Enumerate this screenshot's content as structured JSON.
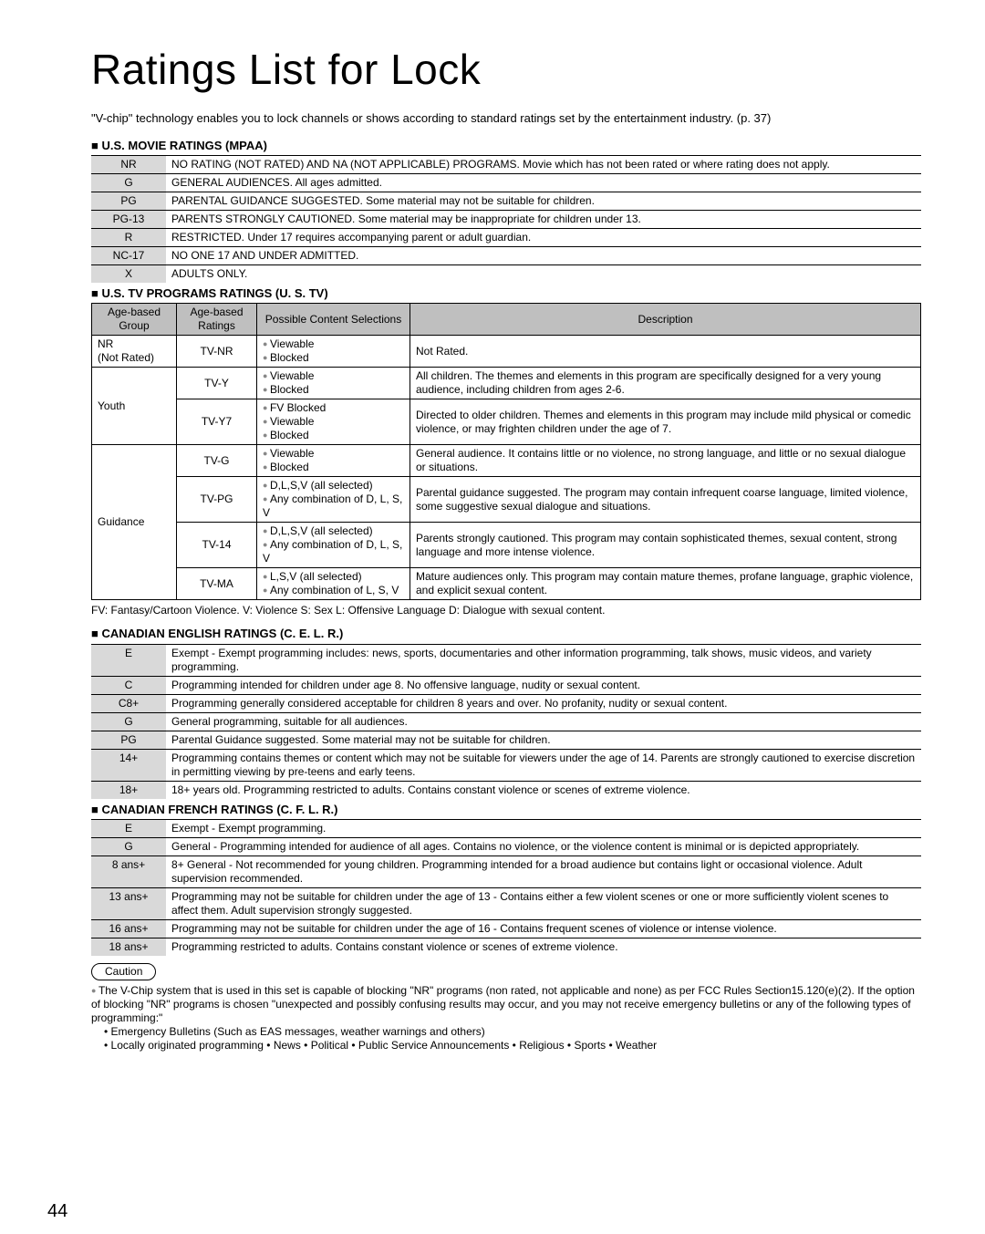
{
  "title": "Ratings List for Lock",
  "intro": "\"V-chip\" technology enables you to lock channels or shows according to standard ratings set by the entertainment industry. (p. 37)",
  "mpaa_head": "U.S. MOVIE RATINGS (MPAA)",
  "mpaa": [
    {
      "code": "NR",
      "desc": "NO RATING (NOT RATED) AND NA (NOT APPLICABLE) PROGRAMS. Movie which has not been rated or where rating does not apply."
    },
    {
      "code": "G",
      "desc": "GENERAL AUDIENCES. All ages admitted."
    },
    {
      "code": "PG",
      "desc": "PARENTAL GUIDANCE SUGGESTED. Some material may not be suitable for children."
    },
    {
      "code": "PG-13",
      "desc": "PARENTS STRONGLY CAUTIONED. Some material may be inappropriate for children under 13."
    },
    {
      "code": "R",
      "desc": "RESTRICTED. Under 17 requires accompanying parent or adult guardian."
    },
    {
      "code": "NC-17",
      "desc": "NO ONE 17 AND UNDER ADMITTED."
    },
    {
      "code": "X",
      "desc": "ADULTS ONLY."
    }
  ],
  "ustv_head": "U.S. TV PROGRAMS RATINGS (U. S. TV)",
  "ustv_cols": {
    "c1": "Age-based Group",
    "c2": "Age-based Ratings",
    "c3": "Possible Content Selections",
    "c4": "Description"
  },
  "ustv": [
    {
      "group": "NR (Not Rated)",
      "rows": [
        {
          "rating": "TV-NR",
          "poss": [
            "Viewable",
            "Blocked"
          ],
          "desc": "Not Rated."
        }
      ]
    },
    {
      "group": "Youth",
      "rows": [
        {
          "rating": "TV-Y",
          "poss": [
            "Viewable",
            "Blocked"
          ],
          "desc": "All children. The themes and elements in this program are specifically designed for a very young audience, including children from ages 2-6."
        },
        {
          "rating": "TV-Y7",
          "poss": [
            "FV Blocked",
            "Viewable",
            "Blocked"
          ],
          "desc": "Directed to older children. Themes and elements in this program may include mild physical or comedic violence, or may frighten children under the age of 7."
        }
      ]
    },
    {
      "group": "Guidance",
      "rows": [
        {
          "rating": "TV-G",
          "poss": [
            "Viewable",
            "Blocked"
          ],
          "desc": "General audience. It contains little or no violence, no strong language, and little or no sexual dialogue or situations."
        },
        {
          "rating": "TV-PG",
          "poss": [
            "D,L,S,V (all selected)",
            "Any combination of D, L, S, V"
          ],
          "desc": "Parental guidance suggested. The program may contain infrequent coarse language, limited violence, some suggestive sexual dialogue and situations."
        },
        {
          "rating": "TV-14",
          "poss": [
            "D,L,S,V (all selected)",
            "Any combination of D, L, S, V"
          ],
          "desc": "Parents strongly cautioned. This program may contain sophisticated themes, sexual content, strong language and more intense violence."
        },
        {
          "rating": "TV-MA",
          "poss": [
            "L,S,V (all selected)",
            "Any combination of L, S, V"
          ],
          "desc": "Mature audiences only. This program may contain mature themes, profane language, graphic violence, and explicit sexual content."
        }
      ]
    }
  ],
  "fv_note": "FV:  Fantasy/Cartoon Violence.  V:  Violence S:  Sex L:  Offensive Language D:  Dialogue with sexual content.",
  "cer_head": "CANADIAN ENGLISH RATINGS (C. E. L. R.)",
  "cer": [
    {
      "code": "E",
      "desc": "Exempt - Exempt programming includes:  news, sports, documentaries and other information programming, talk shows, music videos, and variety programming."
    },
    {
      "code": "C",
      "desc": "Programming intended for children under age 8. No offensive language, nudity or sexual content."
    },
    {
      "code": "C8+",
      "desc": "Programming generally considered acceptable for children 8 years and over. No profanity, nudity or sexual content."
    },
    {
      "code": "G",
      "desc": "General programming, suitable for all audiences."
    },
    {
      "code": "PG",
      "desc": "Parental Guidance suggested. Some material may not be suitable for children."
    },
    {
      "code": "14+",
      "desc": "Programming contains themes or content which may not be suitable for viewers under the age of 14. Parents are strongly cautioned to exercise discretion in permitting viewing by pre-teens and early teens."
    },
    {
      "code": "18+",
      "desc": "18+ years old. Programming restricted to adults. Contains constant violence or scenes of extreme violence."
    }
  ],
  "cfr_head": "CANADIAN FRENCH RATINGS (C. F. L. R.)",
  "cfr": [
    {
      "code": "E",
      "desc": "Exempt - Exempt programming."
    },
    {
      "code": "G",
      "desc": "General - Programming intended for audience of all ages. Contains no violence, or the violence content is minimal or is depicted appropriately."
    },
    {
      "code": "8 ans+",
      "desc": "8+ General - Not recommended for young children. Programming intended for a broad audience but contains light or occasional violence. Adult supervision recommended."
    },
    {
      "code": "13 ans+",
      "desc": "Programming may not be suitable for children under the age of 13 - Contains either a few violent scenes or one or more sufficiently violent scenes to affect them. Adult supervision strongly suggested."
    },
    {
      "code": "16 ans+",
      "desc": "Programming may not be suitable for children under the age of 16 - Contains frequent scenes of violence or intense violence."
    },
    {
      "code": "18 ans+",
      "desc": "Programming restricted to adults. Contains constant violence or scenes of extreme violence."
    }
  ],
  "caution_label": "Caution",
  "caution_main": "The V-Chip system that is used in this set is capable of blocking \"NR\" programs (non rated, not applicable and none) as per FCC Rules Section15.120(e)(2). If the option of blocking \"NR\" programs is chosen \"unexpected and possibly confusing results may occur, and you may not receive emergency bulletins or any of the following types of programming:\"",
  "caution_sub1": "• Emergency Bulletins (Such as EAS messages, weather warnings and others)",
  "caution_sub2": "• Locally originated programming • News • Political • Public Service Announcements • Religious • Sports • Weather",
  "page_num": "44"
}
